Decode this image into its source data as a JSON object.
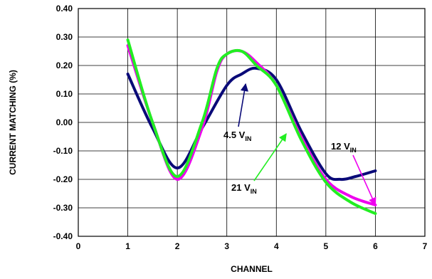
{
  "chart_data": {
    "type": "line",
    "xlabel": "CHANNEL",
    "ylabel": "CURRENT MATCHING (%)",
    "xlim": [
      0,
      7
    ],
    "ylim": [
      -0.4,
      0.4
    ],
    "x_ticks": [
      "0",
      "1",
      "2",
      "3",
      "4",
      "5",
      "6",
      "7"
    ],
    "y_ticks": [
      "0.40",
      "0.30",
      "0.20",
      "0.10",
      "0.00",
      "-0.10",
      "-0.20",
      "-0.30",
      "-0.40"
    ],
    "grid": "vertical and horizontal major gridlines",
    "series": [
      {
        "color": "#0a0a78",
        "points": [
          [
            1.0,
            0.17
          ],
          [
            1.5,
            -0.02
          ],
          [
            2.0,
            -0.16
          ],
          [
            2.5,
            -0.02
          ],
          [
            3.0,
            0.13
          ],
          [
            3.3,
            0.17
          ],
          [
            3.6,
            0.19
          ],
          [
            4.0,
            0.15
          ],
          [
            4.5,
            -0.03
          ],
          [
            5.0,
            -0.18
          ],
          [
            5.3,
            -0.2
          ],
          [
            5.6,
            -0.19
          ],
          [
            6.0,
            -0.17
          ]
        ]
      },
      {
        "color": "#ee00ee",
        "points": [
          [
            1.0,
            0.27
          ],
          [
            1.5,
            0.0
          ],
          [
            2.0,
            -0.2
          ],
          [
            2.5,
            -0.02
          ],
          [
            2.8,
            0.18
          ],
          [
            3.0,
            0.24
          ],
          [
            3.3,
            0.25
          ],
          [
            3.6,
            0.21
          ],
          [
            4.0,
            0.13
          ],
          [
            4.5,
            -0.05
          ],
          [
            5.0,
            -0.2
          ],
          [
            5.5,
            -0.26
          ],
          [
            6.0,
            -0.29
          ]
        ]
      },
      {
        "color": "#22ee22",
        "points": [
          [
            1.0,
            0.29
          ],
          [
            1.5,
            0.0
          ],
          [
            2.0,
            -0.19
          ],
          [
            2.5,
            0.0
          ],
          [
            2.8,
            0.19
          ],
          [
            3.0,
            0.24
          ],
          [
            3.3,
            0.25
          ],
          [
            3.6,
            0.2
          ],
          [
            4.0,
            0.13
          ],
          [
            4.5,
            -0.06
          ],
          [
            5.0,
            -0.21
          ],
          [
            5.5,
            -0.28
          ],
          [
            6.0,
            -0.32
          ]
        ]
      }
    ],
    "annotations": [
      {
        "main": "4.5 V",
        "sub": "IN",
        "color": "#0a0a78",
        "points_to": [
          3.38,
          0.135
        ]
      },
      {
        "main": "21 V",
        "sub": "IN",
        "color": "#22ee22",
        "points_to": [
          4.2,
          -0.04
        ]
      },
      {
        "main": "12 V",
        "sub": "IN",
        "color": "#ee00ee",
        "points_to": [
          6.0,
          -0.29
        ]
      }
    ]
  }
}
